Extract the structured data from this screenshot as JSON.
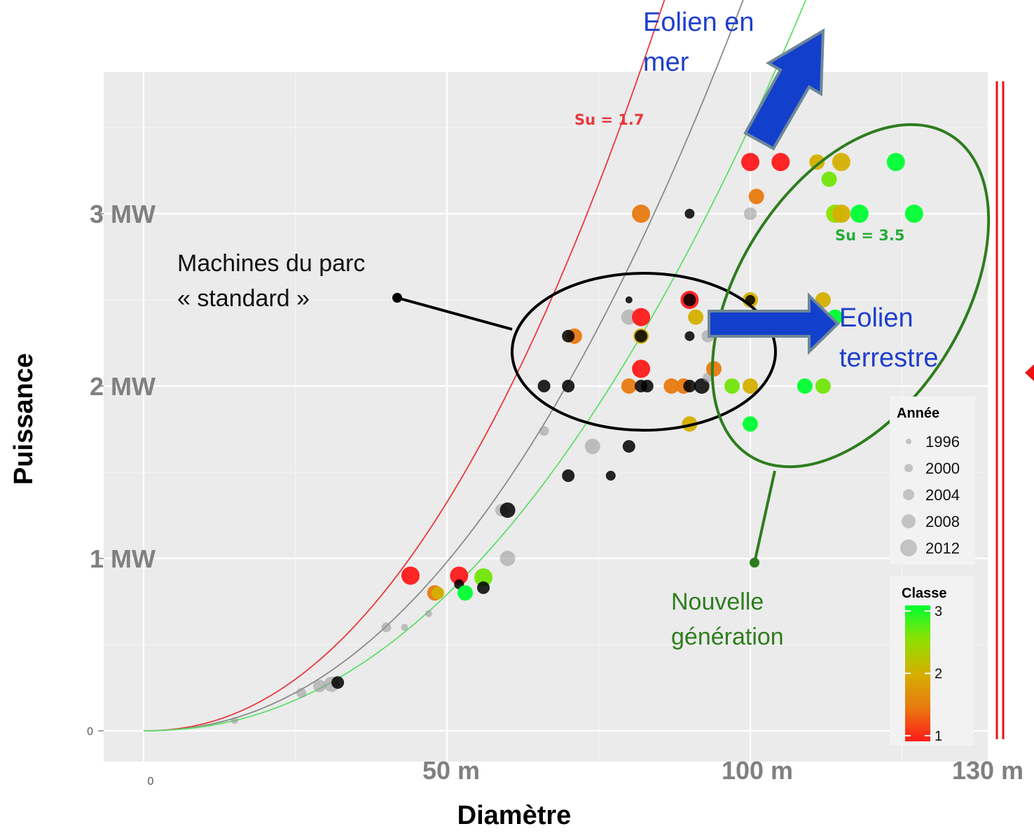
{
  "chart_data": {
    "type": "scatter",
    "title": "",
    "xlabel": "Diamètre",
    "ylabel": "Puissance",
    "xlim": [
      -10,
      136
    ],
    "ylim": [
      -0.18,
      3.78
    ],
    "x_ticks": [
      {
        "value": 0,
        "label": "0",
        "style": "small"
      },
      {
        "value": 50,
        "label": "50 m",
        "style": "big"
      },
      {
        "value": 100,
        "label": "100 m",
        "style": "big"
      },
      {
        "value": 130,
        "label": "130 m",
        "style": "big"
      }
    ],
    "y_ticks": [
      {
        "value": 0,
        "label": "0",
        "style": "small"
      },
      {
        "value": 1,
        "label": "1 MW",
        "style": "big"
      },
      {
        "value": 2,
        "label": "2 MW",
        "style": "big"
      },
      {
        "value": 3,
        "label": "3 MW",
        "style": "big"
      }
    ],
    "grid": true,
    "curves": [
      {
        "label": "Su = 1.7",
        "color": "#e8383d",
        "coef": 0.000295,
        "xmax": 87
      },
      {
        "label": "",
        "color": "#8a8a8a",
        "coef": 0.000218,
        "xmax": 107
      },
      {
        "label": "Su = 3.5",
        "color": "#5ee06a",
        "coef": 0.000176,
        "xmax": 124
      }
    ],
    "points": [
      {
        "x": 15,
        "y": 0.06,
        "year": 1996,
        "classe": null
      },
      {
        "x": 26,
        "y": 0.22,
        "year": 2000,
        "classe": null
      },
      {
        "x": 29,
        "y": 0.26,
        "year": 2004,
        "classe": null
      },
      {
        "x": 31,
        "y": 0.27,
        "year": 2008,
        "classe": null
      },
      {
        "x": 32,
        "y": 0.28,
        "year": 2004,
        "classe": 0
      },
      {
        "x": 40,
        "y": 0.6,
        "year": 2000,
        "classe": null
      },
      {
        "x": 43,
        "y": 0.6,
        "year": 1996,
        "classe": null
      },
      {
        "x": 44,
        "y": 0.9,
        "year": 2012,
        "classe": 1
      },
      {
        "x": 47,
        "y": 0.68,
        "year": 1996,
        "classe": null
      },
      {
        "x": 48,
        "y": 0.8,
        "year": 2008,
        "classe": 1.5
      },
      {
        "x": 48.5,
        "y": 0.8,
        "year": 2004,
        "classe": 2
      },
      {
        "x": 52,
        "y": 0.9,
        "year": 2012,
        "classe": 1
      },
      {
        "x": 52,
        "y": 0.85,
        "year": 2000,
        "classe": 0
      },
      {
        "x": 53,
        "y": 0.8,
        "year": 2008,
        "classe": 3
      },
      {
        "x": 56,
        "y": 0.89,
        "year": 2012,
        "classe": 2.6
      },
      {
        "x": 56,
        "y": 0.83,
        "year": 2004,
        "classe": 0
      },
      {
        "x": 59,
        "y": 1.28,
        "year": 2004,
        "classe": null
      },
      {
        "x": 60,
        "y": 1.28,
        "year": 2008,
        "classe": 0
      },
      {
        "x": 60,
        "y": 1.0,
        "year": 2008,
        "classe": null
      },
      {
        "x": 66,
        "y": 1.74,
        "year": 2000,
        "classe": null
      },
      {
        "x": 66,
        "y": 2.0,
        "year": 2004,
        "classe": 0
      },
      {
        "x": 70,
        "y": 1.48,
        "year": 2004,
        "classe": 0
      },
      {
        "x": 71,
        "y": 2.29,
        "year": 2008,
        "classe": 1.5
      },
      {
        "x": 70,
        "y": 2.29,
        "year": 2004,
        "classe": 0
      },
      {
        "x": 70,
        "y": 2.0,
        "year": 2004,
        "classe": 0
      },
      {
        "x": 74,
        "y": 1.65,
        "year": 2008,
        "classe": null
      },
      {
        "x": 77,
        "y": 1.48,
        "year": 2000,
        "classe": 0
      },
      {
        "x": 80,
        "y": 2.5,
        "year": 1996,
        "classe": 0
      },
      {
        "x": 80,
        "y": 2.4,
        "year": 2008,
        "classe": null
      },
      {
        "x": 80,
        "y": 1.65,
        "year": 2004,
        "classe": 0
      },
      {
        "x": 80,
        "y": 2.0,
        "year": 2008,
        "classe": 1.5
      },
      {
        "x": 82,
        "y": 2.0,
        "year": 2004,
        "classe": 0
      },
      {
        "x": 82,
        "y": 3.0,
        "year": 2012,
        "classe": 1.5
      },
      {
        "x": 82,
        "y": 2.4,
        "year": 2012,
        "classe": 1
      },
      {
        "x": 82,
        "y": 2.1,
        "year": 2012,
        "classe": 1
      },
      {
        "x": 82,
        "y": 2.29,
        "year": 2008,
        "classe": 2
      },
      {
        "x": 82,
        "y": 2.29,
        "year": 2004,
        "classe": 0
      },
      {
        "x": 83,
        "y": 2.0,
        "year": 2004,
        "classe": 0
      },
      {
        "x": 87,
        "y": 2.0,
        "year": 2008,
        "classe": 1.5
      },
      {
        "x": 89,
        "y": 2.0,
        "year": 2008,
        "classe": 1.5
      },
      {
        "x": 90,
        "y": 2.5,
        "year": 2012,
        "classe": 1
      },
      {
        "x": 90,
        "y": 2.5,
        "year": 2004,
        "classe": 0
      },
      {
        "x": 90,
        "y": 3.0,
        "year": 2000,
        "classe": 0
      },
      {
        "x": 90,
        "y": 2.29,
        "year": 2000,
        "classe": 0
      },
      {
        "x": 90,
        "y": 2.0,
        "year": 2004,
        "classe": 0
      },
      {
        "x": 90,
        "y": 1.78,
        "year": 2008,
        "classe": 2
      },
      {
        "x": 91,
        "y": 2.4,
        "year": 2008,
        "classe": 2
      },
      {
        "x": 92,
        "y": 2.0,
        "year": 2008,
        "classe": 0
      },
      {
        "x": 93,
        "y": 2.05,
        "year": 2000,
        "classe": null
      },
      {
        "x": 93,
        "y": 2.29,
        "year": 2004,
        "classe": null
      },
      {
        "x": 94,
        "y": 2.1,
        "year": 2008,
        "classe": 1.5
      },
      {
        "x": 97,
        "y": 2.0,
        "year": 2008,
        "classe": 2.6
      },
      {
        "x": 100,
        "y": 2.5,
        "year": 2008,
        "classe": 2
      },
      {
        "x": 100,
        "y": 2.5,
        "year": 2000,
        "classe": 0
      },
      {
        "x": 100,
        "y": 2.0,
        "year": 2008,
        "classe": 2
      },
      {
        "x": 100,
        "y": 1.78,
        "year": 2008,
        "classe": 3
      },
      {
        "x": 100,
        "y": 3.0,
        "year": 2004,
        "classe": null
      },
      {
        "x": 100,
        "y": 3.3,
        "year": 2012,
        "classe": 1
      },
      {
        "x": 101,
        "y": 3.1,
        "year": 2008,
        "classe": 1.5
      },
      {
        "x": 105,
        "y": 3.3,
        "year": 2012,
        "classe": 1
      },
      {
        "x": 109,
        "y": 2.0,
        "year": 2008,
        "classe": 3
      },
      {
        "x": 111,
        "y": 3.3,
        "year": 2008,
        "classe": 2
      },
      {
        "x": 112,
        "y": 2.5,
        "year": 2008,
        "classe": 2
      },
      {
        "x": 112,
        "y": 2.0,
        "year": 2008,
        "classe": 2.6
      },
      {
        "x": 114,
        "y": 2.4,
        "year": 2008,
        "classe": 3
      },
      {
        "x": 113,
        "y": 3.2,
        "year": 2008,
        "classe": 2.6
      },
      {
        "x": 114,
        "y": 3.0,
        "year": 2012,
        "classe": 2.5
      },
      {
        "x": 115,
        "y": 3.0,
        "year": 2012,
        "classe": 2
      },
      {
        "x": 115,
        "y": 3.3,
        "year": 2012,
        "classe": 2
      },
      {
        "x": 118,
        "y": 3.0,
        "year": 2012,
        "classe": 3
      },
      {
        "x": 124,
        "y": 3.3,
        "year": 2012,
        "classe": 3
      },
      {
        "x": 127,
        "y": 3.0,
        "year": 2012,
        "classe": 3
      }
    ],
    "legend_year": {
      "title": "Année",
      "entries": [
        "1996",
        "2000",
        "2004",
        "2008",
        "2012"
      ]
    },
    "legend_classe": {
      "title": "Classe",
      "ticks": [
        "3",
        "2",
        "1"
      ],
      "colors": [
        "#ff1a1a",
        "#e87a10",
        "#d4b000",
        "#8ee000",
        "#00ff33"
      ]
    },
    "annotations": {
      "offshore": [
        "Eolien en",
        "mer"
      ],
      "onshore": [
        "Eolien",
        "terrestre"
      ],
      "standard": [
        "Machines du parc",
        "« standard »"
      ],
      "nouvelle": [
        "Nouvelle",
        "génération"
      ]
    },
    "colors": {
      "panel": "#ebebeb",
      "grid": "#ffffff",
      "arrow": "#1240cc",
      "arrow_outline": "#6e8798",
      "ellipse_black": "#000000",
      "ellipse_green": "#2e7d1e",
      "red_bar": "#ee1111"
    }
  }
}
